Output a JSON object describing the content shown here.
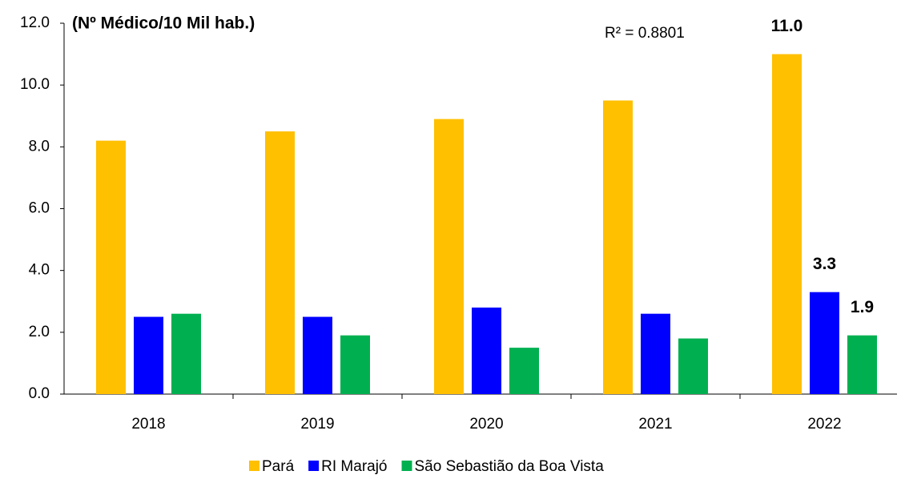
{
  "chart_data": {
    "type": "bar",
    "title": "(Nº Médico/10 Mil hab.)",
    "annotation": "R² = 0.8801",
    "categories": [
      "2018",
      "2019",
      "2020",
      "2021",
      "2022"
    ],
    "series": [
      {
        "name": "Pará",
        "color": "#ffc000",
        "values": [
          8.2,
          8.5,
          8.9,
          9.5,
          11.0
        ],
        "value_labels": [
          null,
          null,
          null,
          null,
          "11.0"
        ]
      },
      {
        "name": "RI Marajó",
        "color": "#0000ff",
        "values": [
          2.5,
          2.5,
          2.8,
          2.6,
          3.3
        ],
        "value_labels": [
          null,
          null,
          null,
          null,
          "3.3"
        ]
      },
      {
        "name": "São Sebastião da Boa Vista",
        "color": "#00b050",
        "values": [
          2.6,
          1.9,
          1.5,
          1.8,
          1.9
        ],
        "value_labels": [
          null,
          null,
          null,
          null,
          "1.9"
        ]
      }
    ],
    "ylim": [
      0,
      12
    ],
    "yticks": [
      {
        "value": 0,
        "label": "0.0"
      },
      {
        "value": 2,
        "label": "2.0"
      },
      {
        "value": 4,
        "label": "4.0"
      },
      {
        "value": 6,
        "label": "6.0"
      },
      {
        "value": 8,
        "label": "8.0"
      },
      {
        "value": 10,
        "label": "10.0"
      },
      {
        "value": 12,
        "label": "12.0"
      }
    ],
    "grid": false,
    "legend": "bottom"
  }
}
